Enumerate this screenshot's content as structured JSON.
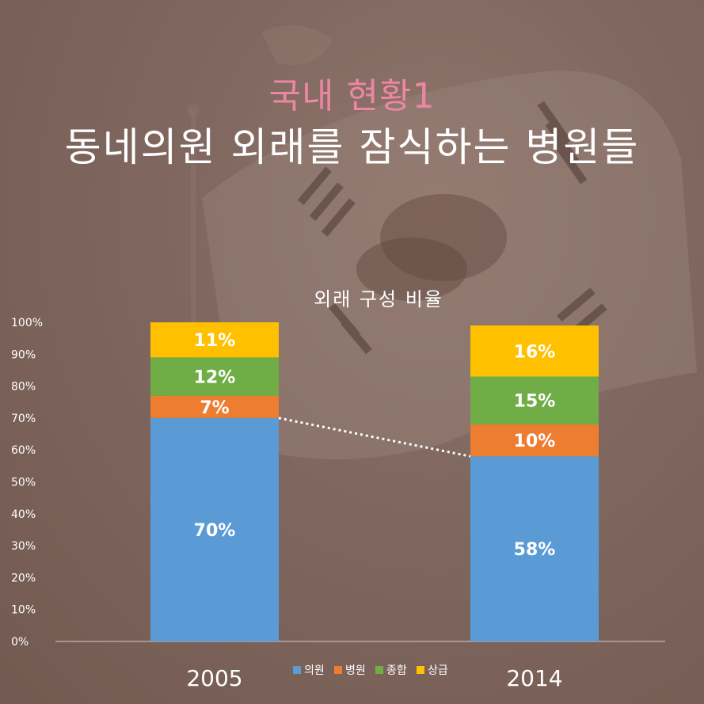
{
  "heading": {
    "subtitle": "국내 현황1",
    "title": "동네의원 외래를 잠식하는 병원들"
  },
  "colors": {
    "background": "#7b6259",
    "subtitle": "#ee86a3",
    "title": "#ffffff"
  },
  "chart_data": {
    "type": "bar",
    "stacked": true,
    "title": "외래 구성 비율",
    "categories": [
      "2005",
      "2014"
    ],
    "ylim": [
      0,
      100
    ],
    "yticks": [
      "0%",
      "10%",
      "20%",
      "30%",
      "40%",
      "50%",
      "60%",
      "70%",
      "80%",
      "90%",
      "100%"
    ],
    "series": [
      {
        "name": "의원",
        "color": "#5b9bd5",
        "values": [
          70,
          58
        ],
        "labels": [
          "70%",
          "58%"
        ]
      },
      {
        "name": "병원",
        "color": "#ed7d31",
        "values": [
          7,
          10
        ],
        "labels": [
          "7%",
          "10%"
        ]
      },
      {
        "name": "종합",
        "color": "#70ad47",
        "values": [
          12,
          15
        ],
        "labels": [
          "12%",
          "15%"
        ]
      },
      {
        "name": "상급",
        "color": "#ffc000",
        "values": [
          11,
          16
        ],
        "labels": [
          "11%",
          "16%"
        ]
      }
    ],
    "connector": {
      "series": "의원",
      "style": "dotted",
      "color": "#ffffff"
    },
    "legend_position": "bottom-center",
    "grid": false
  }
}
